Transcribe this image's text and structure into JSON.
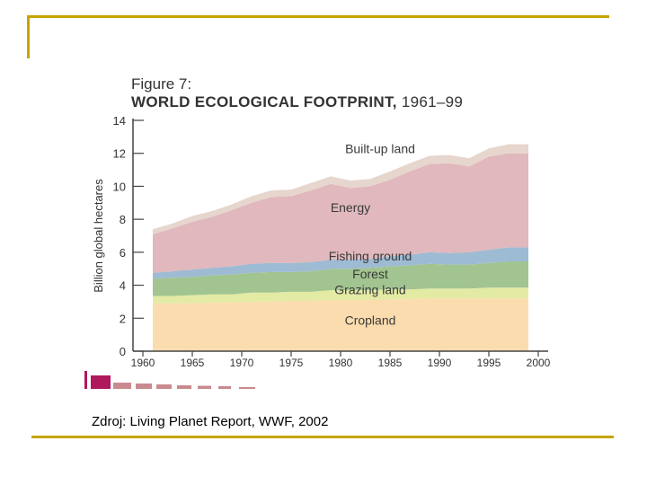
{
  "figure_label": "Figure 7:",
  "title_bold": "WORLD ECOLOGICAL FOOTPRINT,",
  "title_years": "1961–99",
  "caption": "Zdroj: Living Planet Report, WWF, 2002",
  "colors": {
    "frame": "#c8a400",
    "cropland": "#fbdcae",
    "grazing": "#e3eaa4",
    "forest": "#a2c490",
    "fishing": "#9dbbd3",
    "energy": "#e0b8bd",
    "builtup": "#e6d6cd",
    "accent": "#b0185c",
    "deco_bar": "#c98a8f"
  },
  "chart_data": {
    "type": "area",
    "stacked": true,
    "title": "WORLD ECOLOGICAL FOOTPRINT, 1961–99",
    "ylabel": "Billion global hectares",
    "xlabel": "",
    "ylim": [
      0,
      14
    ],
    "xlim": [
      1959,
      2001
    ],
    "yticks": [
      0,
      2,
      4,
      6,
      8,
      10,
      12,
      14
    ],
    "xticks": [
      1960,
      1965,
      1970,
      1975,
      1980,
      1985,
      1990,
      1995,
      2000
    ],
    "x": [
      1961,
      1963,
      1965,
      1967,
      1969,
      1971,
      1973,
      1975,
      1977,
      1979,
      1981,
      1983,
      1985,
      1987,
      1989,
      1991,
      1993,
      1995,
      1997,
      1999
    ],
    "series": [
      {
        "name": "Cropland",
        "values": [
          2.9,
          2.9,
          2.9,
          2.95,
          2.95,
          3.0,
          3.0,
          3.05,
          3.05,
          3.1,
          3.1,
          3.1,
          3.15,
          3.15,
          3.2,
          3.2,
          3.2,
          3.2,
          3.2,
          3.2
        ]
      },
      {
        "name": "Grazing land",
        "values": [
          0.45,
          0.45,
          0.5,
          0.5,
          0.5,
          0.55,
          0.55,
          0.55,
          0.55,
          0.6,
          0.6,
          0.6,
          0.6,
          0.6,
          0.6,
          0.6,
          0.6,
          0.65,
          0.65,
          0.65
        ]
      },
      {
        "name": "Forest",
        "values": [
          1.05,
          1.1,
          1.1,
          1.15,
          1.2,
          1.2,
          1.25,
          1.2,
          1.25,
          1.3,
          1.3,
          1.35,
          1.4,
          1.45,
          1.5,
          1.45,
          1.45,
          1.5,
          1.6,
          1.6
        ]
      },
      {
        "name": "Fishing ground",
        "values": [
          0.35,
          0.4,
          0.45,
          0.45,
          0.5,
          0.55,
          0.55,
          0.55,
          0.55,
          0.55,
          0.55,
          0.55,
          0.6,
          0.65,
          0.7,
          0.7,
          0.75,
          0.8,
          0.85,
          0.85
        ]
      },
      {
        "name": "Energy",
        "values": [
          2.35,
          2.6,
          2.9,
          3.1,
          3.4,
          3.7,
          4.0,
          4.05,
          4.35,
          4.6,
          4.35,
          4.4,
          4.65,
          5.05,
          5.35,
          5.45,
          5.2,
          5.65,
          5.7,
          5.7
        ]
      },
      {
        "name": "Built-up land",
        "values": [
          0.3,
          0.3,
          0.35,
          0.35,
          0.35,
          0.4,
          0.4,
          0.4,
          0.45,
          0.45,
          0.45,
          0.45,
          0.5,
          0.5,
          0.5,
          0.5,
          0.5,
          0.5,
          0.55,
          0.55
        ]
      }
    ],
    "series_labels": [
      {
        "series": "Cropland",
        "text": "Cropland",
        "x": 1983,
        "y": 1.6
      },
      {
        "series": "Grazing land",
        "text": "Grazing land",
        "x": 1983,
        "y": 3.45
      },
      {
        "series": "Forest",
        "text": "Forest",
        "x": 1983,
        "y": 4.4
      },
      {
        "series": "Fishing ground",
        "text": "Fishing ground",
        "x": 1983,
        "y": 5.5
      },
      {
        "series": "Energy",
        "text": "Energy",
        "x": 1981,
        "y": 8.45
      },
      {
        "series": "Built-up land",
        "text": "Built-up land",
        "x": 1984,
        "y": 12.0
      }
    ],
    "grid": false,
    "legend": "inline labels"
  }
}
